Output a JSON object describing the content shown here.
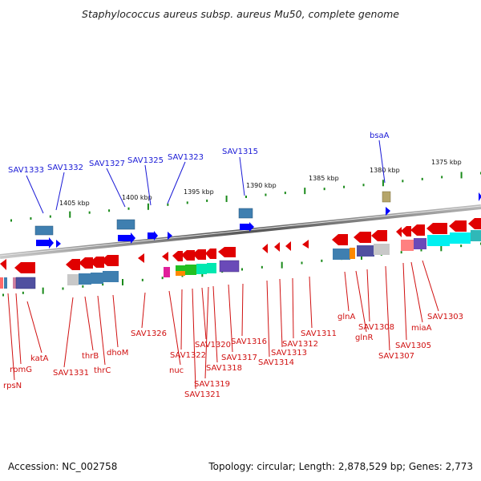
{
  "title": "Staphylococcus aureus subsp. aureus Mu50, complete genome",
  "footer": {
    "accession": "Accession: NC_002758",
    "summary": "Topology: circular; Length: 2,878,529 bp; Genes: 2,773"
  },
  "ruler_labels": [
    "1405 kbp",
    "1400 kbp",
    "1395 kbp",
    "1390 kbp",
    "1385 kbp",
    "1380 kbp",
    "1375 kbp"
  ],
  "top_labels": [
    "SAV1333",
    "SAV1332",
    "SAV1327",
    "SAV1325",
    "SAV1323",
    "SAV1315",
    "bsaA"
  ],
  "bottom_labels": [
    "rpsN",
    "rpmG",
    "katA",
    "SAV1331",
    "thrB",
    "thrC",
    "dhoM",
    "SAV1326",
    "nuc",
    "SAV1322",
    "SAV1321",
    "SAV1320",
    "SAV1319",
    "SAV1318",
    "SAV1317",
    "SAV1316",
    "SAV1314",
    "SAV1313",
    "SAV1312",
    "SAV1311",
    "glnA",
    "glnR",
    "SAV1308",
    "SAV1307",
    "SAV1305",
    "miaA",
    "SAV1303"
  ],
  "colors": {
    "forward_gene": "#0000ff",
    "reverse_gene": "#e00000",
    "forward_label": "#1a1ad6",
    "reverse_label": "#d01010",
    "backbone": "#888888",
    "tick_green": "#1a8a1a"
  }
}
